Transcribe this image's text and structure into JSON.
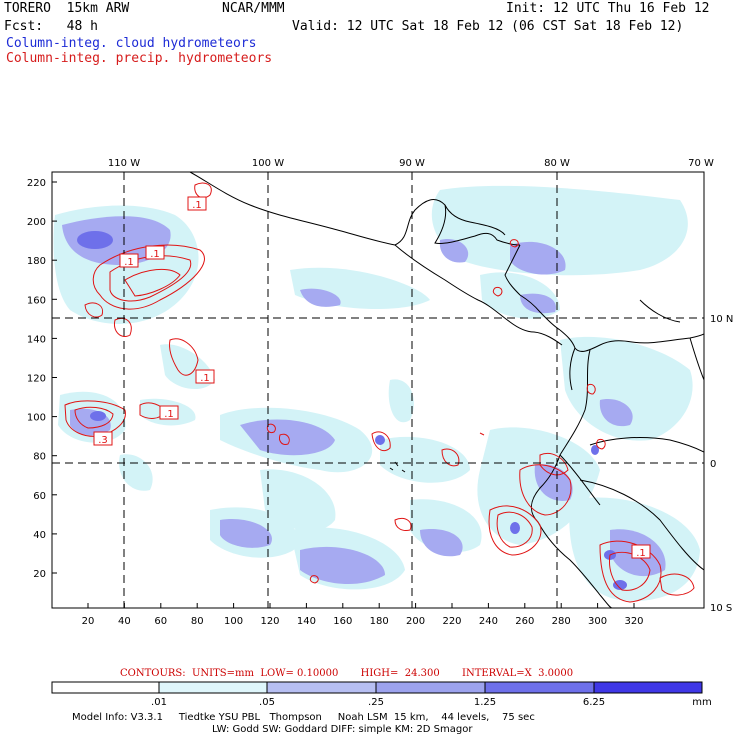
{
  "header": {
    "model": "TORERO  15km ARW",
    "org": "NCAR/MMM",
    "init": "Init: 12 UTC Thu 16 Feb 12",
    "fcst": "Fcst:   48 h",
    "valid": "Valid: 12 UTC Sat 18 Feb 12 (06 CST Sat 18 Feb 12)",
    "field1": "Column-integ. cloud hydrometeors",
    "field2": "Column-integ. precip. hydrometeors"
  },
  "map": {
    "lon_labels": [
      "110 W",
      "100 W",
      "90 W",
      "80 W",
      "70 W"
    ],
    "lat_labels": [
      "10 N",
      "0",
      "10 S"
    ],
    "y_ticks": [
      "220",
      "200",
      "180",
      "160",
      "140",
      "120",
      "100",
      "80",
      "60",
      "40",
      "20"
    ],
    "x_ticks": [
      "20",
      "40",
      "60",
      "80",
      "100",
      "120",
      "140",
      "160",
      "180",
      "200",
      "220",
      "240",
      "260",
      "280",
      "300",
      "320"
    ],
    "contour_labels": [
      ".1",
      ".1",
      ".1",
      ".1",
      ".1",
      ".3",
      ".1"
    ],
    "colors": {
      "cloud_fill": "#8f94ef",
      "light_fill": "#d3f3f7",
      "contour": "#e01414",
      "coast": "#000000"
    }
  },
  "contour_info": {
    "text": "CONTOURS:  UNITS=mm  LOW= 0.10000       HIGH=  24.300       INTERVAL=X  3.0000"
  },
  "colorbar": {
    "labels": [
      ".01",
      ".05",
      ".25",
      "1.25",
      "6.25"
    ],
    "unit": "mm",
    "colors": [
      "#ffffff",
      "#dff6fb",
      "#b7bff2",
      "#9da3ee",
      "#6e70ea",
      "#4d49e2",
      "#2d22ea"
    ]
  },
  "model_info": {
    "line1": "Model Info: V3.3.1     Tiedtke YSU PBL   Thompson     Noah LSM  15 km,    44 levels,    75 sec",
    "line2": "LW: Godd SW: Goddard DIFF: simple KM: 2D Smagor"
  }
}
